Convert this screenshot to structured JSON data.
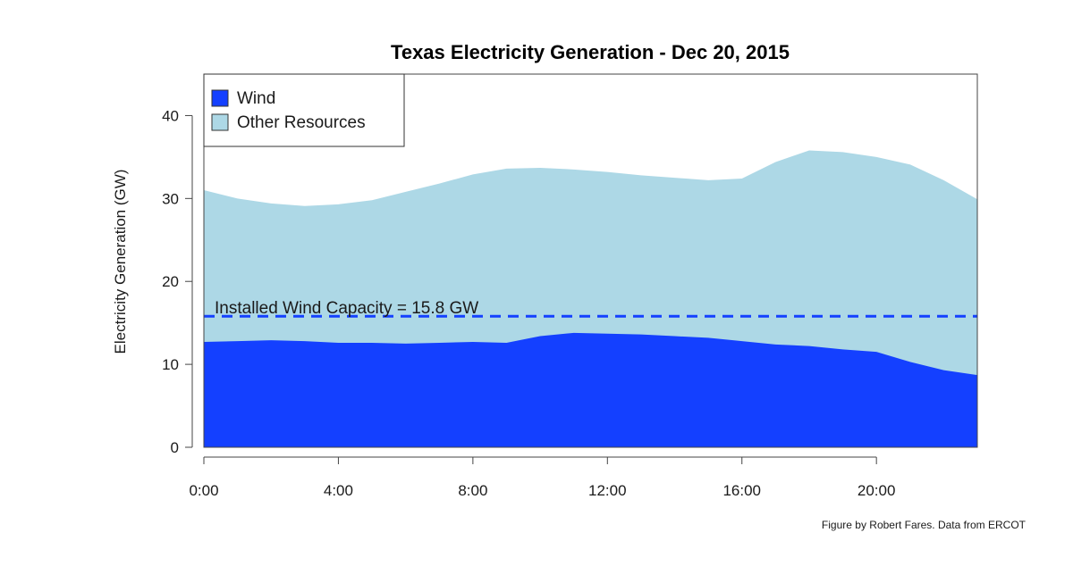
{
  "chart_data": {
    "type": "area",
    "title": "Texas Electricity Generation - Dec 20, 2015",
    "xlabel": "",
    "ylabel": "Electricity Generation (GW)",
    "xlim": [
      0,
      23
    ],
    "ylim": [
      0,
      45
    ],
    "x": [
      0,
      1,
      2,
      3,
      4,
      5,
      6,
      7,
      8,
      9,
      10,
      11,
      12,
      13,
      14,
      15,
      16,
      17,
      18,
      19,
      20,
      21,
      22,
      23
    ],
    "x_ticks": [
      {
        "value": 0,
        "label": "0:00"
      },
      {
        "value": 4,
        "label": "4:00"
      },
      {
        "value": 8,
        "label": "8:00"
      },
      {
        "value": 12,
        "label": "12:00"
      },
      {
        "value": 16,
        "label": "16:00"
      },
      {
        "value": 20,
        "label": "20:00"
      }
    ],
    "y_ticks": [
      0,
      10,
      20,
      30,
      40
    ],
    "series": [
      {
        "name": "Wind",
        "color": "#1440ff",
        "values": [
          12.7,
          12.8,
          12.9,
          12.8,
          12.6,
          12.6,
          12.5,
          12.6,
          12.7,
          12.6,
          13.4,
          13.8,
          13.7,
          13.6,
          13.4,
          13.2,
          12.8,
          12.4,
          12.2,
          11.8,
          11.5,
          10.3,
          9.3,
          8.7
        ]
      },
      {
        "name": "Other Resources",
        "color": "#add8e6",
        "total_values": [
          31.0,
          30.0,
          29.4,
          29.1,
          29.3,
          29.8,
          30.8,
          31.8,
          32.9,
          33.6,
          33.7,
          33.5,
          33.2,
          32.8,
          32.5,
          32.2,
          32.4,
          34.4,
          35.8,
          35.6,
          35.0,
          34.1,
          32.2,
          29.9
        ]
      }
    ],
    "reference_line": {
      "value": 15.8,
      "label": "Installed Wind Capacity = 15.8 GW",
      "color": "#1440ff",
      "style": "dashed"
    },
    "legend": {
      "placement": "top-left",
      "entries": [
        {
          "label": "Wind",
          "color": "#1440ff"
        },
        {
          "label": "Other Resources",
          "color": "#add8e6"
        }
      ]
    },
    "grid": false,
    "credit": "Figure by Robert Fares. Data from ERCOT"
  }
}
